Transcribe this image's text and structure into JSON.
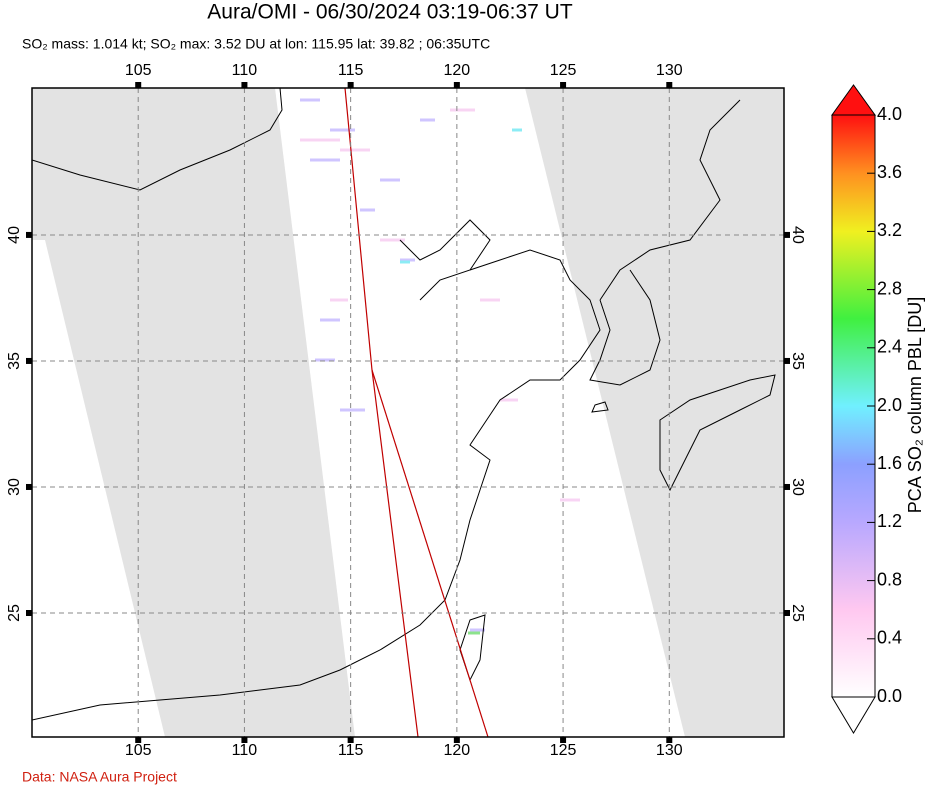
{
  "chart_data": {
    "type": "map",
    "title": "Aura/OMI - 06/30/2024 03:19-06:37 UT",
    "subtitle": "SO₂ mass: 1.014 kt; SO₂ max: 3.52 DU at lon: 115.95 lat: 39.82 ; 06:35UTC",
    "xlim": [
      100,
      135.4
    ],
    "ylim": [
      20.08,
      45.83
    ],
    "xticks": [
      105,
      110,
      115,
      120,
      125,
      130
    ],
    "yticks": [
      25,
      30,
      35,
      40
    ],
    "grid": true,
    "colorbar": {
      "label": "PCA SO₂ column PBL [DU]",
      "lim": [
        0,
        4
      ],
      "ticks": [
        {
          "value": 0,
          "label": "0.0"
        },
        0.4,
        0.8,
        1.2,
        1.6,
        {
          "value": 2,
          "label": "2.0"
        },
        2.4,
        2.8,
        3.2,
        3.6,
        {
          "value": 4,
          "label": "4.0"
        }
      ]
    },
    "source": "Data: NASA Aura Project"
  }
}
